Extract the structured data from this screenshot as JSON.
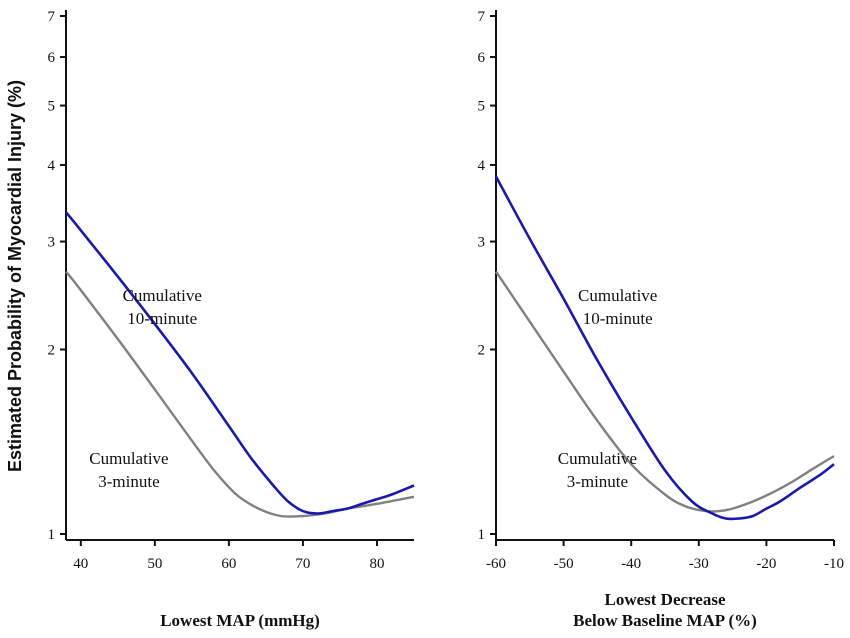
{
  "y_axis_label": "Estimated Probability of Myocardial Injury (%)",
  "colors": {
    "ten_minute": "#1a1aa8",
    "three_minute": "#808080",
    "axis": "#111111"
  },
  "chart_data": [
    {
      "type": "line",
      "y_scale": "log",
      "xlabel": [
        "Lowest MAP (mmHg)"
      ],
      "ylabel": "Estimated Probability of Myocardial Injury (%)",
      "xlim": [
        38,
        85
      ],
      "ylim": [
        1,
        7
      ],
      "xticks": [
        "40",
        "50",
        "60",
        "70",
        "80"
      ],
      "yticks": [
        "1",
        "2",
        "3",
        "4",
        "5",
        "6",
        "7"
      ],
      "annotations": [
        {
          "lines": [
            "Cumulative",
            "10-minute"
          ],
          "series": "10-minute",
          "x": 51,
          "y": 2.4
        },
        {
          "lines": [
            "Cumulative",
            "3-minute"
          ],
          "series": "3-minute",
          "x": 46.5,
          "y": 1.3
        }
      ],
      "series": [
        {
          "key": "10-minute",
          "x": [
            38,
            40,
            45,
            50,
            55,
            60,
            63,
            66,
            68,
            70,
            72,
            74,
            76,
            78,
            80,
            82,
            85
          ],
          "y": [
            3.35,
            3.13,
            2.63,
            2.2,
            1.83,
            1.5,
            1.33,
            1.2,
            1.13,
            1.09,
            1.08,
            1.09,
            1.1,
            1.12,
            1.14,
            1.16,
            1.2
          ]
        },
        {
          "key": "3-minute",
          "x": [
            38,
            40,
            45,
            50,
            55,
            58,
            61,
            64,
            67,
            70,
            73,
            76,
            80,
            85
          ],
          "y": [
            2.68,
            2.5,
            2.08,
            1.72,
            1.42,
            1.27,
            1.16,
            1.1,
            1.07,
            1.07,
            1.08,
            1.1,
            1.12,
            1.15
          ]
        }
      ]
    },
    {
      "type": "line",
      "y_scale": "log",
      "xlabel": [
        "Lowest Decrease",
        "Below Baseline MAP (%)"
      ],
      "xlim": [
        -60,
        -10
      ],
      "ylim": [
        1,
        7
      ],
      "xticks": [
        "-60",
        "-50",
        "-40",
        "-30",
        "-20",
        "-10"
      ],
      "yticks": [
        "1",
        "2",
        "3",
        "4",
        "5",
        "6",
        "7"
      ],
      "annotations": [
        {
          "lines": [
            "Cumulative",
            "10-minute"
          ],
          "series": "10-minute",
          "x": -42,
          "y": 2.4
        },
        {
          "lines": [
            "Cumulative",
            "3-minute"
          ],
          "series": "3-minute",
          "x": -45,
          "y": 1.3
        }
      ],
      "series": [
        {
          "key": "10-minute",
          "x": [
            -60,
            -55,
            -50,
            -45,
            -40,
            -35,
            -31,
            -28,
            -26,
            -24,
            -22,
            -20,
            -18,
            -15,
            -12,
            -10
          ],
          "y": [
            3.83,
            3.03,
            2.42,
            1.92,
            1.55,
            1.27,
            1.13,
            1.08,
            1.06,
            1.06,
            1.07,
            1.1,
            1.13,
            1.19,
            1.25,
            1.3
          ]
        },
        {
          "key": "3-minute",
          "x": [
            -60,
            -55,
            -50,
            -45,
            -40,
            -35,
            -32,
            -29,
            -27,
            -25,
            -22,
            -19,
            -16,
            -13,
            -10
          ],
          "y": [
            2.68,
            2.22,
            1.84,
            1.53,
            1.3,
            1.16,
            1.11,
            1.09,
            1.09,
            1.1,
            1.13,
            1.17,
            1.22,
            1.28,
            1.34
          ]
        }
      ]
    }
  ]
}
